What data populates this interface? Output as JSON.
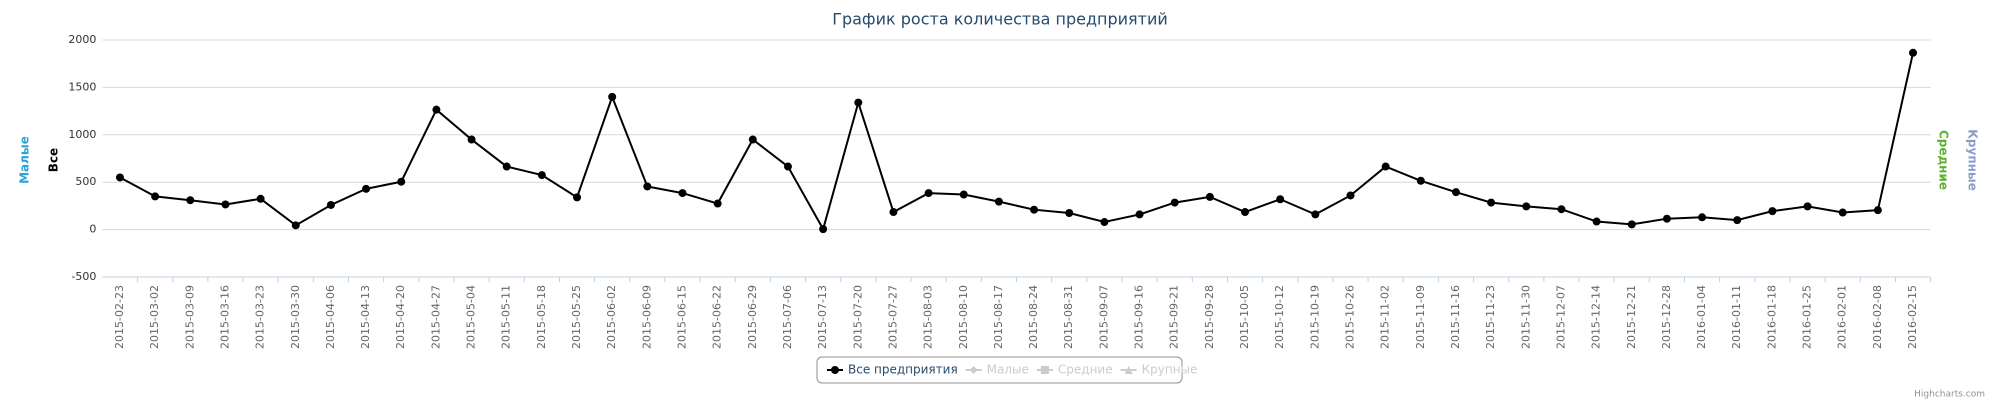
{
  "chart_data": {
    "type": "line",
    "title": "График роста количества предприятий",
    "y_axis_titles": [
      "Малые",
      "Все"
    ],
    "y2_axis_titles": [
      "Средние",
      "Крупные"
    ],
    "categories": [
      "2015-02-23",
      "2015-03-02",
      "2015-03-09",
      "2015-03-16",
      "2015-03-23",
      "2015-03-30",
      "2015-04-06",
      "2015-04-13",
      "2015-04-20",
      "2015-04-27",
      "2015-05-04",
      "2015-05-11",
      "2015-05-18",
      "2015-05-25",
      "2015-06-02",
      "2015-06-09",
      "2015-06-15",
      "2015-06-22",
      "2015-06-29",
      "2015-07-06",
      "2015-07-13",
      "2015-07-20",
      "2015-07-27",
      "2015-08-03",
      "2015-08-10",
      "2015-08-17",
      "2015-08-24",
      "2015-08-31",
      "2015-09-07",
      "2015-09-16",
      "2015-09-21",
      "2015-09-28",
      "2015-10-05",
      "2015-10-12",
      "2015-10-19",
      "2015-10-26",
      "2015-11-02",
      "2015-11-09",
      "2015-11-16",
      "2015-11-23",
      "2015-11-30",
      "2015-12-07",
      "2015-12-14",
      "2015-12-21",
      "2015-12-28",
      "2016-01-04",
      "2016-01-11",
      "2016-01-18",
      "2016-01-25",
      "2016-02-01",
      "2016-02-08",
      "2016-02-15"
    ],
    "series": [
      {
        "name": "Все предприятия",
        "color": "#000000",
        "values": [
          550,
          350,
          310,
          265,
          325,
          45,
          260,
          430,
          505,
          1265,
          950,
          665,
          575,
          340,
          1400,
          455,
          385,
          275,
          950,
          665,
          5,
          1340,
          185,
          385,
          370,
          295,
          210,
          175,
          80,
          160,
          285,
          345,
          185,
          320,
          160,
          360,
          665,
          515,
          395,
          285,
          245,
          215,
          85,
          55,
          115,
          130,
          100,
          195,
          245,
          180,
          205,
          1865
        ]
      },
      {
        "name": "Малые",
        "color": "#cccccc"
      },
      {
        "name": "Средние",
        "color": "#cccccc"
      },
      {
        "name": "Крупные",
        "color": "#cccccc"
      }
    ],
    "ylim": [
      -500,
      2000
    ],
    "yticks": [
      -500,
      0,
      500,
      1000,
      1500,
      2000
    ],
    "grid": true,
    "legend": "bottom",
    "credits": "Highcharts.com"
  }
}
